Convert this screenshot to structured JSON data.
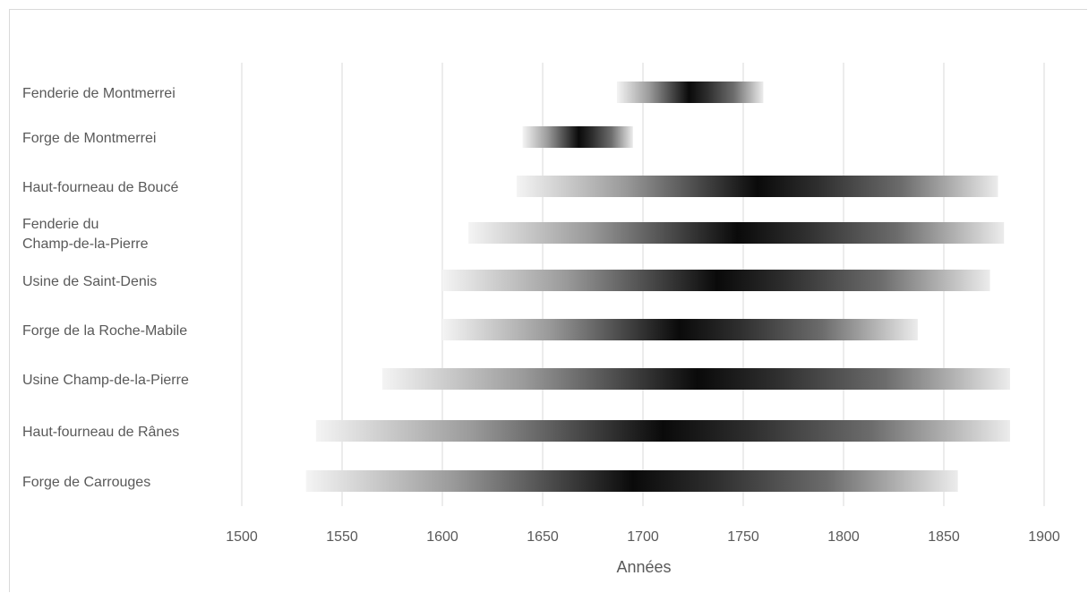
{
  "chart_data": {
    "type": "bar",
    "orientation": "horizontal",
    "title": "",
    "xlabel": "Années",
    "ylabel": "",
    "xlim": [
      1500,
      1900
    ],
    "x_ticks": [
      1500,
      1550,
      1600,
      1650,
      1700,
      1750,
      1800,
      1850,
      1900
    ],
    "grid": true,
    "bar_fill": "gradient (light at ends, dark at peak)",
    "colors": {
      "peak": "#0a0a0a",
      "edge": "#ffffff",
      "grid": "#d9d9d9",
      "text": "#595959"
    },
    "categories": [
      "Fenderie de Montmerrei",
      "Forge de Montmerrei",
      "Haut-fourneau de Boucé",
      "Fenderie du Champ-de-la-Pierre",
      "Usine de Saint-Denis",
      "Forge de la Roche-Mabile",
      "Usine Champ-de-la-Pierre",
      "Haut-fourneau de Rânes",
      "Forge de Carrouges"
    ],
    "category_lines": [
      [
        "Fenderie de Montmerrei"
      ],
      [
        "Forge de Montmerrei"
      ],
      [
        "Haut-fourneau de Boucé"
      ],
      [
        "Fenderie du",
        "Champ-de-la-Pierre"
      ],
      [
        "Usine de Saint-Denis"
      ],
      [
        "Forge de la Roche-Mabile"
      ],
      [
        "Usine Champ-de-la-Pierre"
      ],
      [
        "Haut-fourneau de Rânes"
      ],
      [
        "Forge de Carrouges"
      ]
    ],
    "bars": [
      {
        "start": 1687,
        "end": 1760,
        "peak": 1723
      },
      {
        "start": 1640,
        "end": 1695,
        "peak": 1668
      },
      {
        "start": 1637,
        "end": 1877,
        "peak": 1757
      },
      {
        "start": 1613,
        "end": 1880,
        "peak": 1747
      },
      {
        "start": 1600,
        "end": 1873,
        "peak": 1737
      },
      {
        "start": 1600,
        "end": 1837,
        "peak": 1718
      },
      {
        "start": 1570,
        "end": 1883,
        "peak": 1727
      },
      {
        "start": 1537,
        "end": 1883,
        "peak": 1710
      },
      {
        "start": 1532,
        "end": 1857,
        "peak": 1695
      }
    ]
  }
}
